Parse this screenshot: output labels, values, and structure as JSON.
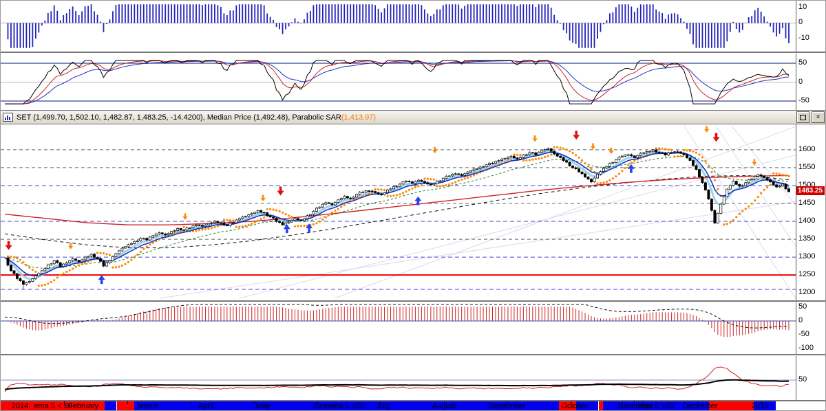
{
  "window": {
    "title": "SET (1,499.70, 1,502.10, 1,482.87, 1,483.25, -14.4200), Median Price (1,492.48), Parabolic SAR ",
    "sar_value": "(1,413.97)",
    "close_glyph": "×"
  },
  "badge": {
    "value": "1483.25"
  },
  "axes": {
    "p1_ticks": [
      10,
      0,
      -10
    ],
    "p2_ticks": [
      50,
      0,
      -50
    ],
    "price_ticks": [
      1600,
      1550,
      1500,
      1450,
      1400,
      1350,
      1300,
      1250,
      1200
    ],
    "p4_ticks": [
      50,
      0,
      -50,
      -100
    ],
    "p5_ticks": [
      50
    ],
    "months": [
      {
        "label": "2014",
        "x": 0.024
      },
      {
        "label": "February",
        "x": 0.104
      },
      {
        "label": "March",
        "x": 0.185
      },
      {
        "label": "April",
        "x": 0.258
      },
      {
        "label": "May",
        "x": 0.33
      },
      {
        "label": "June",
        "x": 0.402
      },
      {
        "label": "July",
        "x": 0.481
      },
      {
        "label": "August",
        "x": 0.558
      },
      {
        "label": "September",
        "x": 0.636
      },
      {
        "label": "October",
        "x": 0.722
      },
      {
        "label": "November",
        "x": 0.798
      },
      {
        "label": "December",
        "x": 0.88
      },
      {
        "label": "2015",
        "x": 0.955
      }
    ]
  },
  "ribbon": {
    "segments": [
      {
        "from": 0.0,
        "to": 0.131,
        "color": "#ff0000",
        "label": "ema 5 < 50"
      },
      {
        "from": 0.131,
        "to": 0.146,
        "color": "#0000ee",
        "label": ""
      },
      {
        "from": 0.146,
        "to": 0.168,
        "color": "#ff0000",
        "label": ""
      },
      {
        "from": 0.168,
        "to": 0.702,
        "color": "#0000ee",
        "label": "ema 5 >50"
      },
      {
        "from": 0.702,
        "to": 0.724,
        "color": "#ff0000",
        "label": ""
      },
      {
        "from": 0.724,
        "to": 0.752,
        "color": "#0000ee",
        "label": ""
      },
      {
        "from": 0.752,
        "to": 0.758,
        "color": "#ff0000",
        "label": ""
      },
      {
        "from": 0.758,
        "to": 0.891,
        "color": "#0000ee",
        "label": "ema 5 >50"
      },
      {
        "from": 0.891,
        "to": 0.947,
        "color": "#ff0000",
        "label": ""
      },
      {
        "from": 0.947,
        "to": 0.975,
        "color": "#0000ee",
        "label": ""
      },
      {
        "from": 0.975,
        "to": 1.0,
        "color": "#ffffff",
        "label": ""
      }
    ]
  },
  "chart_data": {
    "type": "candlestick",
    "symbol": "SET",
    "ohlc_display": {
      "open": "1,499.70",
      "high": "1,502.10",
      "low": "1,482.87",
      "close": "1,483.25",
      "change": "-14.4200"
    },
    "median_price": 1492.48,
    "parabolic_sar": 1413.97,
    "x_range": [
      "Jan 2014",
      "Jan 2015"
    ],
    "price": {
      "ylim": [
        1185,
        1665
      ],
      "close": [
        1298,
        1262,
        1240,
        1224,
        1232,
        1248,
        1262,
        1278,
        1290,
        1274,
        1284,
        1295,
        1287,
        1300,
        1308,
        1296,
        1275,
        1290,
        1310,
        1325,
        1335,
        1344,
        1352,
        1348,
        1360,
        1368,
        1362,
        1372,
        1380,
        1376,
        1382,
        1390,
        1386,
        1394,
        1400,
        1396,
        1388,
        1396,
        1408,
        1414,
        1422,
        1430,
        1424,
        1412,
        1400,
        1390,
        1398,
        1408,
        1402,
        1416,
        1428,
        1440,
        1452,
        1446,
        1460,
        1470,
        1464,
        1476,
        1482,
        1485,
        1480,
        1474,
        1488,
        1497,
        1504,
        1512,
        1506,
        1515,
        1508,
        1502,
        1512,
        1520,
        1527,
        1533,
        1528,
        1538,
        1546,
        1552,
        1558,
        1562,
        1570,
        1576,
        1582,
        1574,
        1586,
        1592,
        1586,
        1597,
        1603,
        1588,
        1578,
        1565,
        1550,
        1538,
        1524,
        1510,
        1532,
        1548,
        1562,
        1572,
        1582,
        1586,
        1578,
        1590,
        1595,
        1600,
        1592,
        1585,
        1593,
        1594,
        1586,
        1570,
        1545,
        1508,
        1462,
        1395,
        1448,
        1490,
        1512,
        1498,
        1508,
        1518,
        1530,
        1522,
        1510,
        1496,
        1504,
        1483
      ]
    },
    "ma_long_red": [
      1420,
      1408,
      1396,
      1390,
      1390,
      1394,
      1400,
      1410,
      1422,
      1435,
      1448,
      1461,
      1474,
      1487,
      1498,
      1508,
      1516,
      1522,
      1526,
      1528
    ],
    "ma_med_black": [
      1365,
      1348,
      1334,
      1326,
      1326,
      1334,
      1346,
      1362,
      1380,
      1400,
      1420,
      1440,
      1460,
      1478,
      1494,
      1507,
      1518,
      1526,
      1528,
      1516
    ],
    "gridlines": {
      "gray_dashed": [
        1600,
        1550,
        1450,
        1350
      ],
      "blue_dashed": [
        1500,
        1400,
        1300,
        1210
      ],
      "red_solid": [
        1250
      ]
    },
    "arrows": [
      {
        "x": 0.01,
        "price": 1320,
        "dir": "down",
        "color": "red",
        "size": "big"
      },
      {
        "x": 0.088,
        "price": 1322,
        "dir": "down",
        "color": "orange",
        "size": "small"
      },
      {
        "x": 0.127,
        "price": 1250,
        "dir": "up",
        "color": "blue",
        "size": "big"
      },
      {
        "x": 0.232,
        "price": 1404,
        "dir": "down",
        "color": "orange",
        "size": "small"
      },
      {
        "x": 0.33,
        "price": 1456,
        "dir": "down",
        "color": "orange",
        "size": "small"
      },
      {
        "x": 0.352,
        "price": 1472,
        "dir": "down",
        "color": "red",
        "size": "big"
      },
      {
        "x": 0.36,
        "price": 1392,
        "dir": "up",
        "color": "blue",
        "size": "big"
      },
      {
        "x": 0.388,
        "price": 1394,
        "dir": "up",
        "color": "blue",
        "size": "big"
      },
      {
        "x": 0.525,
        "price": 1470,
        "dir": "up",
        "color": "blue",
        "size": "big"
      },
      {
        "x": 0.546,
        "price": 1590,
        "dir": "down",
        "color": "orange",
        "size": "small"
      },
      {
        "x": 0.672,
        "price": 1622,
        "dir": "down",
        "color": "orange",
        "size": "small"
      },
      {
        "x": 0.724,
        "price": 1628,
        "dir": "down",
        "color": "red",
        "size": "big"
      },
      {
        "x": 0.745,
        "price": 1600,
        "dir": "down",
        "color": "orange",
        "size": "small"
      },
      {
        "x": 0.768,
        "price": 1588,
        "dir": "down",
        "color": "orange",
        "size": "small"
      },
      {
        "x": 0.793,
        "price": 1560,
        "dir": "up",
        "color": "blue",
        "size": "big"
      },
      {
        "x": 0.888,
        "price": 1648,
        "dir": "down",
        "color": "orange",
        "size": "small"
      },
      {
        "x": 0.9,
        "price": 1622,
        "dir": "down",
        "color": "red",
        "size": "big"
      },
      {
        "x": 0.948,
        "price": 1556,
        "dir": "down",
        "color": "orange",
        "size": "small"
      }
    ],
    "trendlines": [
      {
        "x1": 0.2,
        "p1": 1185,
        "x2": 1.0,
        "p2": 1455
      },
      {
        "x1": 0.3,
        "p1": 1185,
        "x2": 1.0,
        "p2": 1585
      },
      {
        "x1": 0.42,
        "p1": 1185,
        "x2": 1.0,
        "p2": 1668
      },
      {
        "x1": 0.86,
        "p1": 1665,
        "x2": 1.0,
        "p2": 1185
      },
      {
        "x1": 0.9,
        "p1": 1665,
        "x2": 1.0,
        "p2": 1330
      },
      {
        "x1": 0.92,
        "p1": 1665,
        "x2": 1.0,
        "p2": 1445
      }
    ],
    "indicator_panels": [
      {
        "name": "top-histogram",
        "type": "bar",
        "yticks": [
          10,
          0,
          -10
        ],
        "ylim": [
          -17,
          13
        ],
        "color": "#2222bb"
      },
      {
        "name": "oscillator",
        "type": "line",
        "yticks": [
          50,
          0,
          -50
        ],
        "ylim": [
          -70,
          70
        ],
        "levels": [
          50,
          -50
        ],
        "lines": [
          "black",
          "red",
          "blue"
        ]
      },
      {
        "name": "macd-histogram",
        "type": "bar",
        "yticks": [
          50,
          0,
          -50,
          -100
        ],
        "ylim": [
          -115,
          60
        ],
        "lines": [
          "black-dashed"
        ],
        "color": "#cc2222"
      },
      {
        "name": "volatility-ema",
        "type": "line",
        "yticks": [
          50
        ],
        "ylim": [
          -5,
          115
        ],
        "lines": [
          "black",
          "red"
        ]
      }
    ]
  }
}
